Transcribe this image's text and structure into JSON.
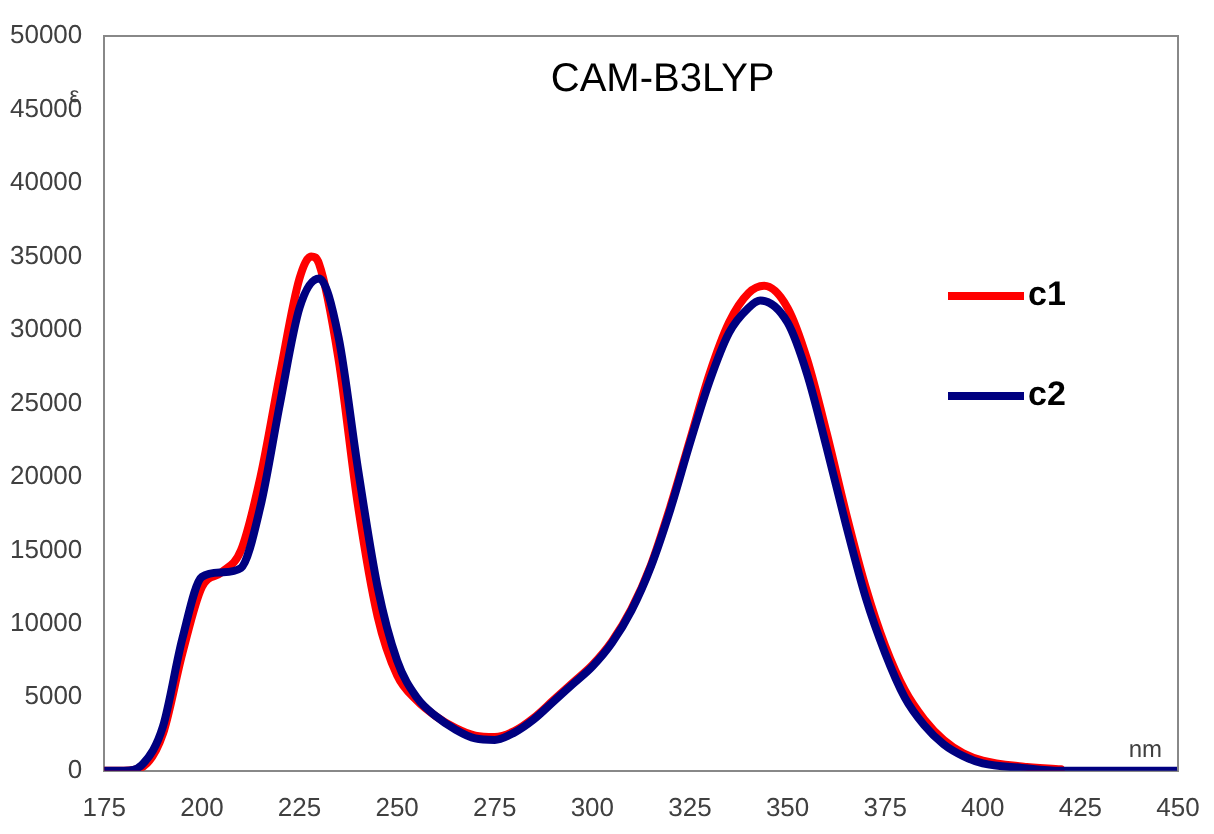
{
  "chart_data": {
    "type": "line",
    "title": "CAM-B3LYP",
    "xlabel": "nm",
    "ylabel": "ε",
    "xlim": [
      175,
      450
    ],
    "xticks": [
      175,
      200,
      225,
      250,
      275,
      300,
      325,
      350,
      375,
      400,
      425,
      450
    ],
    "ylim": [
      0,
      50000
    ],
    "yticks": [
      0,
      5000,
      10000,
      15000,
      20000,
      25000,
      30000,
      35000,
      40000,
      45000,
      50000
    ],
    "grid": false,
    "legend": "right",
    "marker": "none",
    "line_style": "solid",
    "series": [
      {
        "name": "c1",
        "color": "#ff0000",
        "x": [
          175,
          180,
          185,
          190,
          195,
          200,
          205,
          210,
          215,
          220,
          225,
          228,
          230,
          235,
          240,
          245,
          250,
          255,
          260,
          265,
          270,
          275,
          280,
          285,
          290,
          295,
          300,
          305,
          310,
          315,
          320,
          325,
          330,
          335,
          340,
          344,
          350,
          355,
          360,
          365,
          370,
          375,
          380,
          385,
          390,
          395,
          400,
          410,
          420
        ],
        "values": [
          0,
          0,
          300,
          2500,
          8000,
          12500,
          13500,
          15000,
          20000,
          27000,
          33500,
          35000,
          34500,
          28000,
          18000,
          10500,
          6500,
          4800,
          3700,
          2900,
          2400,
          2300,
          2700,
          3600,
          4800,
          6000,
          7200,
          8800,
          11000,
          14000,
          18000,
          22500,
          27000,
          30500,
          32500,
          33000,
          31500,
          28000,
          23000,
          17500,
          12500,
          8500,
          5500,
          3500,
          2100,
          1200,
          700,
          300,
          100
        ]
      },
      {
        "name": "c2",
        "color": "#000080",
        "x": [
          175,
          180,
          185,
          190,
          195,
          200,
          205,
          210,
          215,
          220,
          225,
          230,
          235,
          240,
          245,
          250,
          255,
          260,
          265,
          270,
          275,
          280,
          285,
          290,
          295,
          300,
          305,
          310,
          315,
          320,
          325,
          330,
          335,
          340,
          343,
          350,
          355,
          360,
          365,
          370,
          375,
          380,
          385,
          390,
          395,
          400,
          410,
          420,
          430,
          450
        ],
        "values": [
          0,
          0,
          500,
          3000,
          9000,
          13200,
          13500,
          13800,
          18000,
          25000,
          31500,
          33500,
          29500,
          20500,
          12500,
          7500,
          5000,
          3700,
          2800,
          2200,
          2100,
          2600,
          3500,
          4700,
          5900,
          7100,
          8700,
          10900,
          13900,
          17800,
          22300,
          26500,
          29800,
          31500,
          32000,
          30500,
          27000,
          22000,
          16700,
          11800,
          8000,
          5000,
          3100,
          1800,
          1000,
          500,
          200,
          0,
          0,
          0
        ]
      }
    ]
  }
}
